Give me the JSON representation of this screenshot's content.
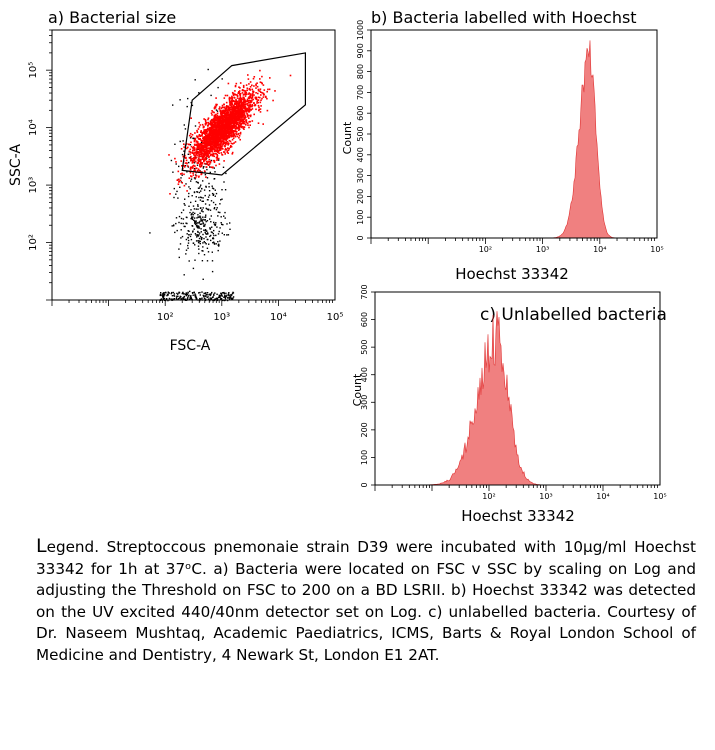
{
  "chart_data": [
    {
      "type": "scatter",
      "title": "a) Bacterial size",
      "xlabel": "FSC-A",
      "ylabel": "SSC-A",
      "x_scale": "log",
      "y_scale": "log",
      "xlim": [
        1,
        100000
      ],
      "ylim": [
        10,
        500000
      ],
      "x_ticks": [
        "10²",
        "10³",
        "10⁴",
        "10⁵"
      ],
      "y_ticks": [
        "10²",
        "10³",
        "10⁴",
        "10⁵"
      ],
      "gate_polygon": [
        {
          "x": 200,
          "y": 1800
        },
        {
          "x": 300,
          "y": 30000
        },
        {
          "x": 1500,
          "y": 120000
        },
        {
          "x": 30000,
          "y": 200000
        },
        {
          "x": 30000,
          "y": 25000
        },
        {
          "x": 1000,
          "y": 1500
        }
      ],
      "populations": [
        {
          "name": "gated",
          "color": "#ff0000",
          "center": {
            "x": 1000,
            "y": 10000
          }
        },
        {
          "name": "debris",
          "color": "#000000",
          "center": {
            "x": 400,
            "y": 300
          }
        }
      ]
    },
    {
      "type": "area",
      "title": "b) Bacteria labelled with Hoechst",
      "xlabel": "Hoechst 33342",
      "ylabel": "Count",
      "x_scale": "log",
      "xlim": [
        1,
        100000
      ],
      "ylim": [
        0,
        1000
      ],
      "x_ticks": [
        "10²",
        "10³",
        "10⁴",
        "10⁵"
      ],
      "y_ticks": [
        "0",
        "100",
        "200",
        "300",
        "400",
        "500",
        "600",
        "700",
        "800",
        "900",
        "1000"
      ],
      "peak": {
        "x": 6500,
        "y": 960
      },
      "color": "#f08080"
    },
    {
      "type": "area",
      "title": "c) Unlabelled bacteria",
      "xlabel": "Hoechst 33342",
      "ylabel": "Count",
      "x_scale": "log",
      "xlim": [
        1,
        100000
      ],
      "ylim": [
        0,
        700
      ],
      "x_ticks": [
        "10²",
        "10³",
        "10⁴",
        "10⁵"
      ],
      "y_ticks": [
        "0",
        "100",
        "200",
        "300",
        "400",
        "500",
        "600",
        "700"
      ],
      "peak": {
        "x": 130,
        "y": 640
      },
      "color": "#f08080"
    }
  ],
  "legend": {
    "cap": "L",
    "text": "egend. Streptoccous pnemonaie strain D39 were incubated with 10µg/ml Hoechst 33342 for 1h at 37ᵒC. a) Bacteria were located on FSC v SSC by scaling on Log and adjusting  the Threshold on FSC to 200 on a BD LSRII. b) Hoechst 33342 was detected on the UV excited 440/40nm detector set on Log. c) unlabelled bacteria. Courtesy of Dr. Naseem Mushtaq,  Academic Paediatrics, ICMS, Barts & Royal London School of Medicine and Dentistry, 4 Newark St, London E1 2AT."
  }
}
